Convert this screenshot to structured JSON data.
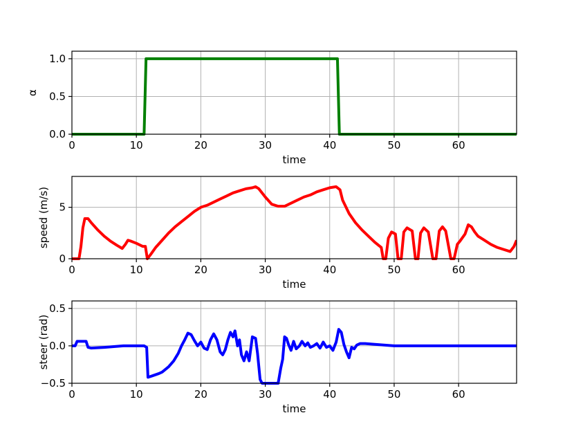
{
  "chart_data": [
    {
      "type": "line",
      "title": "",
      "xlabel": "time",
      "ylabel": "α",
      "xlim": [
        0,
        69
      ],
      "ylim": [
        0,
        1.1
      ],
      "xticks": [
        0,
        10,
        20,
        30,
        40,
        50,
        60
      ],
      "yticks": [
        0.0,
        0.5,
        1.0
      ],
      "ytick_labels": [
        "0.0",
        "0.5",
        "1.0"
      ],
      "grid": true,
      "color": "#008000",
      "series": [
        {
          "x": [
            0,
            11.2,
            11.5,
            41.2,
            41.5,
            69
          ],
          "y": [
            0,
            0,
            1,
            1,
            0,
            0
          ]
        }
      ]
    },
    {
      "type": "line",
      "title": "",
      "xlabel": "time",
      "ylabel": "speed (m/s)",
      "xlim": [
        0,
        69
      ],
      "ylim": [
        0,
        8
      ],
      "xticks": [
        0,
        10,
        20,
        30,
        40,
        50,
        60
      ],
      "yticks": [
        0,
        5
      ],
      "ytick_labels": [
        "0",
        "5"
      ],
      "grid": true,
      "color": "#ff0000",
      "series": [
        {
          "x": [
            0,
            1.1,
            1.4,
            1.7,
            2.0,
            2.5,
            3,
            4,
            5,
            6,
            7,
            7.8,
            8.3,
            8.7,
            9.2,
            10,
            11,
            11.4,
            11.7,
            12.2,
            13,
            14,
            15,
            16,
            17,
            18,
            19,
            20,
            21,
            22,
            23,
            24,
            25,
            26,
            27,
            28,
            28.5,
            29,
            30,
            31,
            32,
            33,
            34,
            35,
            36,
            37,
            38,
            39,
            40,
            41,
            41.6,
            42,
            43,
            44,
            45,
            46,
            47,
            48,
            48.3,
            48.7,
            49.1,
            49.6,
            50.2,
            50.6,
            51.1,
            51.5,
            52,
            52.8,
            53.3,
            53.7,
            54.1,
            54.6,
            55.3,
            56,
            56.5,
            57,
            57.5,
            58,
            58.8,
            59.3,
            59.8,
            60.2,
            61,
            61.5,
            62,
            62.5,
            63,
            64,
            65,
            66,
            67,
            68,
            68.6,
            69
          ],
          "y": [
            0,
            0,
            1.2,
            3.0,
            3.9,
            3.9,
            3.5,
            2.8,
            2.2,
            1.7,
            1.3,
            1.0,
            1.4,
            1.8,
            1.7,
            1.5,
            1.2,
            1.2,
            0,
            0.4,
            1.1,
            1.8,
            2.5,
            3.1,
            3.6,
            4.1,
            4.6,
            5.0,
            5.2,
            5.5,
            5.8,
            6.1,
            6.4,
            6.6,
            6.8,
            6.9,
            7.0,
            6.8,
            6.0,
            5.3,
            5.1,
            5.1,
            5.4,
            5.7,
            6.0,
            6.2,
            6.5,
            6.7,
            6.9,
            7.0,
            6.7,
            5.7,
            4.4,
            3.5,
            2.8,
            2.2,
            1.6,
            1.1,
            0,
            0,
            2.0,
            2.6,
            2.4,
            0,
            0,
            2.6,
            3.0,
            2.7,
            0,
            0,
            2.5,
            3.0,
            2.6,
            0,
            0,
            2.7,
            3.1,
            2.7,
            0,
            0,
            1.4,
            1.7,
            2.4,
            3.3,
            3.1,
            2.6,
            2.2,
            1.8,
            1.4,
            1.1,
            0.9,
            0.7,
            1.2,
            1.8
          ]
        }
      ]
    },
    {
      "type": "line",
      "title": "",
      "xlabel": "time",
      "ylabel": "steer (rad)",
      "xlim": [
        0,
        69
      ],
      "ylim": [
        -0.5,
        0.6
      ],
      "xticks": [
        0,
        10,
        20,
        30,
        40,
        50,
        60
      ],
      "yticks": [
        -0.5,
        0.0,
        0.5
      ],
      "ytick_labels": [
        "−0.5",
        "0.0",
        "0.5"
      ],
      "grid": true,
      "color": "#0000ff",
      "series": [
        {
          "x": [
            0,
            0.5,
            0.8,
            1.5,
            2.2,
            2.5,
            3,
            5,
            8,
            10,
            11.2,
            11.6,
            11.8,
            12.5,
            13.5,
            14,
            15,
            15.8,
            16.5,
            17,
            17.5,
            18,
            18.5,
            19,
            19.5,
            20,
            20.5,
            21,
            21.5,
            22,
            22.5,
            23,
            23.4,
            23.8,
            24.2,
            24.6,
            25,
            25.3,
            25.7,
            26,
            26.3,
            26.7,
            27.1,
            27.5,
            28,
            28.5,
            28.8,
            29.2,
            29.5,
            30,
            31,
            32,
            32.4,
            32.7,
            33,
            33.3,
            33.6,
            34,
            34.4,
            34.8,
            35.3,
            35.7,
            36.2,
            36.6,
            37,
            37.5,
            38,
            38.5,
            39,
            39.5,
            40,
            40.5,
            41,
            41.4,
            41.8,
            42.2,
            42.6,
            43,
            43.4,
            43.8,
            44.2,
            44.7,
            45.5,
            47,
            50,
            55,
            60,
            65,
            69
          ],
          "y": [
            0,
            0,
            0.06,
            0.06,
            0.06,
            -0.02,
            -0.03,
            -0.02,
            0,
            0,
            0,
            -0.02,
            -0.42,
            -0.4,
            -0.37,
            -0.35,
            -0.28,
            -0.2,
            -0.1,
            0.0,
            0.08,
            0.17,
            0.15,
            0.07,
            0.0,
            0.05,
            -0.03,
            -0.05,
            0.08,
            0.16,
            0.08,
            -0.08,
            -0.12,
            -0.05,
            0.08,
            0.18,
            0.12,
            0.2,
            0.0,
            0.08,
            -0.12,
            -0.2,
            -0.08,
            -0.2,
            0.12,
            0.1,
            -0.1,
            -0.45,
            -0.5,
            -0.5,
            -0.5,
            -0.5,
            -0.3,
            -0.18,
            0.12,
            0.1,
            0.02,
            -0.06,
            0.06,
            -0.04,
            0.0,
            0.06,
            0.0,
            0.04,
            -0.02,
            0.0,
            0.03,
            -0.03,
            0.05,
            -0.02,
            0.0,
            -0.06,
            0.05,
            0.22,
            0.18,
            0.02,
            -0.08,
            -0.16,
            -0.02,
            -0.04,
            0.01,
            0.03,
            0.03,
            0.02,
            0.0,
            0.0,
            0.0,
            0.0,
            0.0
          ]
        }
      ]
    }
  ]
}
